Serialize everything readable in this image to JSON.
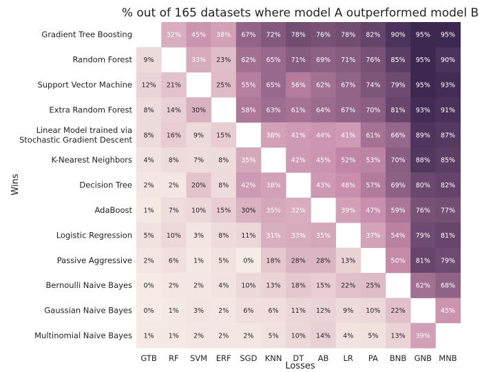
{
  "chart_data": {
    "type": "heatmap",
    "title": "% out of 165 datasets where model A outperformed model B",
    "xlabel": "Losses",
    "ylabel": "Wins",
    "rows": [
      [
        "Gradient Tree Boosting"
      ],
      [
        "Random Forest"
      ],
      [
        "Support Vector Machine"
      ],
      [
        "Extra Random Forest"
      ],
      [
        "Linear Model trained via",
        "Stochastic Gradient Descent"
      ],
      [
        "K-Nearest Neighbors"
      ],
      [
        "Decision Tree"
      ],
      [
        "AdaBoost"
      ],
      [
        "Logistic Regression"
      ],
      [
        "Passive Aggressive"
      ],
      [
        "Bernoulli Naive Bayes"
      ],
      [
        "Gaussian Naive Bayes"
      ],
      [
        "Multinomial Naive Bayes"
      ]
    ],
    "columns": [
      "GTB",
      "RF",
      "SVM",
      "ERF",
      "SGD",
      "KNN",
      "DT",
      "AB",
      "LR",
      "PA",
      "BNB",
      "GNB",
      "MNB"
    ],
    "values": [
      [
        null,
        32,
        45,
        38,
        67,
        72,
        78,
        76,
        78,
        82,
        90,
        95,
        95
      ],
      [
        9,
        null,
        33,
        23,
        62,
        65,
        71,
        69,
        71,
        76,
        85,
        95,
        90
      ],
      [
        12,
        21,
        null,
        25,
        55,
        65,
        56,
        62,
        67,
        74,
        79,
        95,
        93
      ],
      [
        8,
        14,
        30,
        null,
        58,
        63,
        61,
        64,
        67,
        70,
        81,
        93,
        91
      ],
      [
        8,
        16,
        9,
        15,
        null,
        38,
        41,
        44,
        41,
        61,
        66,
        89,
        87
      ],
      [
        4,
        8,
        7,
        8,
        35,
        null,
        42,
        45,
        52,
        53,
        70,
        88,
        85
      ],
      [
        2,
        2,
        20,
        8,
        42,
        38,
        null,
        43,
        48,
        57,
        69,
        80,
        82
      ],
      [
        1,
        7,
        10,
        15,
        30,
        35,
        32,
        null,
        39,
        47,
        59,
        76,
        77
      ],
      [
        5,
        10,
        3,
        8,
        11,
        31,
        33,
        35,
        null,
        37,
        54,
        79,
        81
      ],
      [
        2,
        6,
        1,
        5,
        0,
        18,
        28,
        28,
        13,
        null,
        50,
        81,
        79
      ],
      [
        0,
        2,
        2,
        4,
        10,
        13,
        18,
        15,
        22,
        25,
        null,
        62,
        68
      ],
      [
        0,
        1,
        3,
        2,
        6,
        6,
        11,
        12,
        9,
        10,
        22,
        null,
        45
      ],
      [
        1,
        1,
        2,
        2,
        2,
        5,
        10,
        14,
        4,
        5,
        13,
        39,
        null
      ]
    ],
    "value_suffix": "%",
    "color_low": "#f6ebe5",
    "color_mid": "#c68aa9",
    "color_high": "#2e1d47",
    "grid": false
  }
}
